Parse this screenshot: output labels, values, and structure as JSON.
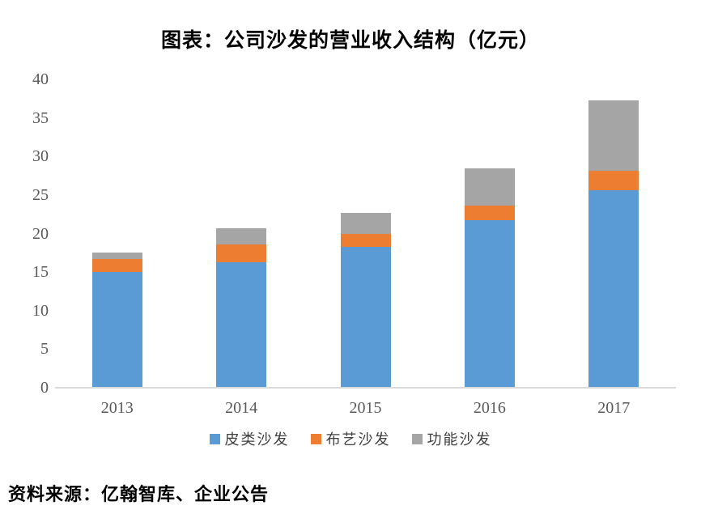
{
  "title": "图表：公司沙发的营业收入结构（亿元）",
  "source": "资料来源：亿翰智库、企业公告",
  "colors": {
    "axis_line": "#d9d9d9",
    "tick_label": "#595959",
    "title_text": "#000000",
    "series_blue": "#5B9BD5",
    "series_orange": "#ED7D31",
    "series_gray": "#A5A5A5"
  },
  "chart_data": {
    "type": "bar",
    "stacked": true,
    "title": "图表：公司沙发的营业收入结构（亿元）",
    "xlabel": "",
    "ylabel": "",
    "categories": [
      "2013",
      "2014",
      "2015",
      "2016",
      "2017"
    ],
    "series": [
      {
        "name": "皮类沙发",
        "color": "#5B9BD5",
        "values": [
          15.0,
          16.3,
          18.3,
          21.7,
          25.6
        ]
      },
      {
        "name": "布艺沙发",
        "color": "#ED7D31",
        "values": [
          1.7,
          2.3,
          1.7,
          1.9,
          2.5
        ]
      },
      {
        "name": "功能沙发",
        "color": "#A5A5A5",
        "values": [
          0.8,
          2.1,
          2.7,
          4.9,
          9.2
        ]
      }
    ],
    "totals": [
      17.5,
      20.7,
      22.7,
      28.5,
      37.3
    ],
    "ylim": [
      0,
      40
    ],
    "y_ticks": [
      0,
      5,
      10,
      15,
      20,
      25,
      30,
      35,
      40
    ],
    "grid": false,
    "legend_position": "bottom"
  }
}
